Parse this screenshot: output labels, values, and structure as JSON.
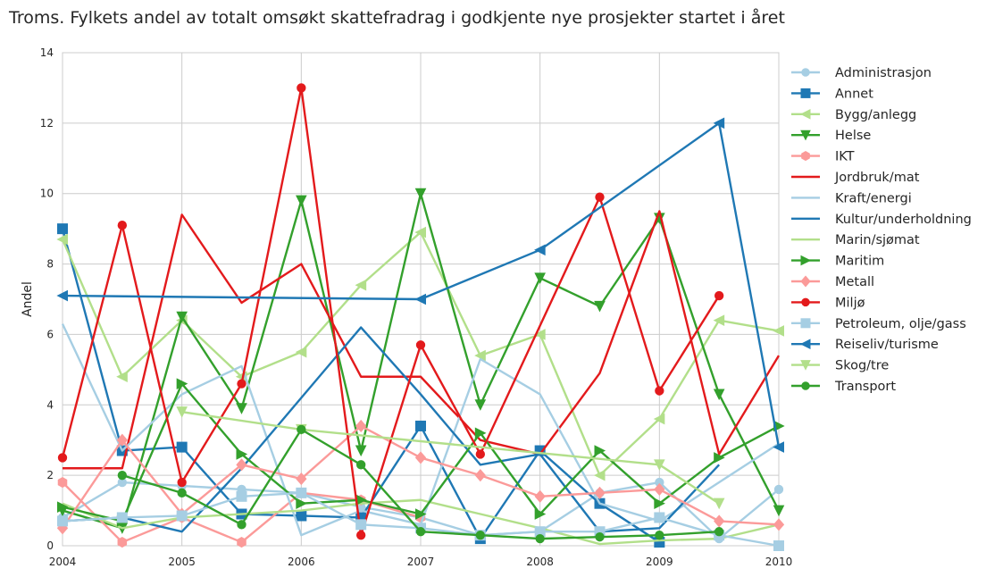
{
  "chart_data": {
    "type": "line",
    "title": "Troms. Fylkets andel av totalt omsøkt skattefradrag i godkjente nye prosjekter startet i året",
    "xlabel": "",
    "ylabel": "Andel",
    "xlim": [
      2004,
      2010
    ],
    "ylim": [
      0,
      14
    ],
    "xticks": [
      2004,
      2005,
      2006,
      2007,
      2008,
      2009,
      2010
    ],
    "yticks": [
      0,
      2,
      4,
      6,
      8,
      10,
      12,
      14
    ],
    "x": [
      2004,
      2004.5,
      2005,
      2005.5,
      2006,
      2006.5,
      2007,
      2007.5,
      2008,
      2008.5,
      2009,
      2009.5,
      2010
    ],
    "grid": true,
    "legend_position": "right",
    "series": [
      {
        "name": "Administrasjon",
        "color": "#a6cee3",
        "marker": "circle",
        "values": [
          0.8,
          1.8,
          1.7,
          1.6,
          1.5,
          1.1,
          0.8,
          0.3,
          0.4,
          1.5,
          1.8,
          0.2,
          1.6
        ]
      },
      {
        "name": "Annet",
        "color": "#1f78b4",
        "marker": "square",
        "values": [
          9.0,
          2.7,
          2.8,
          0.9,
          0.85,
          0.8,
          3.4,
          0.2,
          2.7,
          1.2,
          0.1,
          null,
          null
        ]
      },
      {
        "name": "Bygg/anlegg",
        "color": "#b2df8a",
        "marker": "triangle-left",
        "values": [
          8.7,
          4.8,
          6.4,
          4.8,
          5.5,
          7.4,
          8.9,
          5.4,
          6.0,
          2.0,
          3.6,
          6.4,
          6.1
        ]
      },
      {
        "name": "Helse",
        "color": "#33a02c",
        "marker": "triangle-down",
        "values": [
          1.0,
          0.5,
          6.5,
          3.9,
          9.8,
          2.7,
          10.0,
          4.0,
          7.6,
          6.8,
          9.3,
          4.3,
          1.0
        ]
      },
      {
        "name": "IKT",
        "color": "#fb9a99",
        "marker": "hexagon",
        "values": [
          1.8,
          0.1,
          0.8,
          0.1,
          1.5,
          1.3,
          0.8,
          null,
          null,
          null,
          null,
          null,
          null
        ]
      },
      {
        "name": "Jordbruk/mat",
        "color": "#e31a1c",
        "marker": "none",
        "values": [
          2.2,
          2.2,
          9.4,
          6.9,
          8.0,
          4.8,
          4.8,
          3.0,
          2.6,
          4.9,
          9.5,
          2.6,
          5.4
        ]
      },
      {
        "name": "Kraft/energi",
        "color": "#a6cee3",
        "marker": "none",
        "values": [
          6.3,
          2.7,
          4.3,
          5.1,
          0.3,
          1.0,
          0.6,
          5.3,
          4.3,
          1.2,
          0.7,
          1.8,
          2.9
        ]
      },
      {
        "name": "Kultur/underholdning",
        "color": "#1f78b4",
        "marker": "none",
        "values": [
          0.7,
          0.8,
          0.4,
          2.2,
          4.2,
          6.2,
          4.3,
          2.3,
          2.6,
          0.4,
          0.5,
          2.3,
          null
        ]
      },
      {
        "name": "Marin/sjømat",
        "color": "#b2df8a",
        "marker": "none",
        "values": [
          1.2,
          0.5,
          0.8,
          0.9,
          1.0,
          1.2,
          1.3,
          0.9,
          0.5,
          0.05,
          0.15,
          0.2,
          0.6
        ]
      },
      {
        "name": "Maritim",
        "color": "#33a02c",
        "marker": "triangle-right",
        "values": [
          1.1,
          0.7,
          4.6,
          2.6,
          1.2,
          1.3,
          0.9,
          3.2,
          0.9,
          2.7,
          1.2,
          2.5,
          3.4
        ]
      },
      {
        "name": "Metall",
        "color": "#fb9a99",
        "marker": "diamond",
        "values": [
          0.5,
          3.0,
          0.9,
          2.3,
          1.9,
          3.4,
          2.5,
          2.0,
          1.4,
          1.5,
          1.6,
          0.7,
          0.6
        ]
      },
      {
        "name": "Miljø",
        "color": "#e31a1c",
        "marker": "circle",
        "values": [
          2.5,
          9.1,
          1.8,
          4.6,
          13.0,
          0.3,
          5.7,
          2.6,
          null,
          9.9,
          4.4,
          7.1,
          null
        ]
      },
      {
        "name": "Petroleum, olje/gass",
        "color": "#a6cee3",
        "marker": "square",
        "values": [
          0.7,
          0.8,
          0.85,
          1.4,
          1.5,
          0.6,
          0.5,
          0.3,
          0.4,
          0.4,
          0.8,
          0.3,
          0.0
        ]
      },
      {
        "name": "Reiseliv/turisme",
        "color": "#1f78b4",
        "marker": "triangle-left",
        "values": [
          7.1,
          null,
          null,
          null,
          null,
          null,
          7.0,
          null,
          8.4,
          null,
          null,
          12.0,
          2.8
        ]
      },
      {
        "name": "Skog/tre",
        "color": "#b2df8a",
        "marker": "triangle-down",
        "values": [
          null,
          null,
          3.8,
          null,
          3.3,
          null,
          null,
          null,
          null,
          null,
          2.3,
          1.2,
          null
        ]
      },
      {
        "name": "Transport",
        "color": "#33a02c",
        "marker": "circle",
        "values": [
          null,
          2.0,
          1.5,
          0.6,
          3.3,
          2.3,
          0.4,
          0.3,
          0.2,
          0.25,
          0.3,
          0.4,
          null
        ]
      }
    ]
  }
}
